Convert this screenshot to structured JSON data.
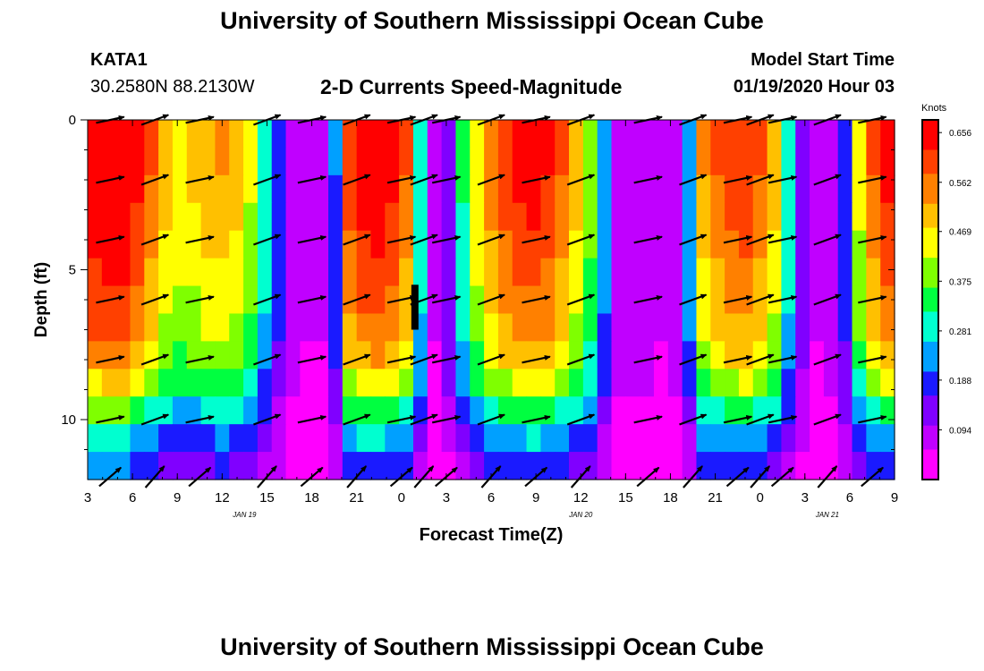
{
  "header": {
    "title": "University of Southern Mississippi Ocean Cube",
    "station_id": "KATA1",
    "station_coords": "30.2580N 88.2130W",
    "subtitle": "2-D Currents Speed-Magnitude",
    "model_start_label": "Model Start Time",
    "model_start_value": "01/19/2020 Hour 03"
  },
  "footer": {
    "title": "University of Southern Mississippi Ocean Cube"
  },
  "chart_data": {
    "type": "heatmap",
    "title": "2-D Currents Speed-Magnitude",
    "xlabel": "Forecast Time(Z)",
    "ylabel": "Depth (ft)",
    "xlim": [
      0,
      54
    ],
    "ylim": [
      0,
      12
    ],
    "x_ticks": [
      {
        "x": 0,
        "label": "3"
      },
      {
        "x": 3,
        "label": "6"
      },
      {
        "x": 6,
        "label": "9"
      },
      {
        "x": 9,
        "label": "12"
      },
      {
        "x": 12,
        "label": "15"
      },
      {
        "x": 15,
        "label": "18"
      },
      {
        "x": 18,
        "label": "21"
      },
      {
        "x": 21,
        "label": "0"
      },
      {
        "x": 24,
        "label": "3"
      },
      {
        "x": 27,
        "label": "6"
      },
      {
        "x": 30,
        "label": "9"
      },
      {
        "x": 33,
        "label": "12"
      },
      {
        "x": 36,
        "label": "15"
      },
      {
        "x": 39,
        "label": "18"
      },
      {
        "x": 42,
        "label": "21"
      },
      {
        "x": 45,
        "label": "0"
      },
      {
        "x": 48,
        "label": "3"
      },
      {
        "x": 51,
        "label": "6"
      },
      {
        "x": 54,
        "label": "9"
      }
    ],
    "date_labels": [
      {
        "x": 10.5,
        "label": "JAN 19"
      },
      {
        "x": 33,
        "label": "JAN 20"
      },
      {
        "x": 49.5,
        "label": "JAN 21"
      }
    ],
    "y_ticks": [
      {
        "y": 0,
        "label": "0"
      },
      {
        "y": 5,
        "label": "5"
      },
      {
        "y": 10,
        "label": "10"
      }
    ],
    "depth_rows": [
      0,
      1,
      2,
      3,
      4,
      5,
      6,
      7,
      8,
      9,
      10,
      11,
      12
    ],
    "row_factor": [
      1.12,
      1.12,
      1.1,
      1.07,
      1.04,
      1.0,
      0.97,
      0.93,
      0.87,
      0.75,
      0.6,
      0.45,
      0.34
    ],
    "surface_speed_series": [
      0.62,
      0.64,
      0.63,
      0.58,
      0.52,
      0.44,
      0.42,
      0.43,
      0.46,
      0.47,
      0.44,
      0.39,
      0.27,
      0.17,
      0.07,
      0.06,
      0.06,
      0.19,
      0.55,
      0.6,
      0.61,
      0.58,
      0.52,
      0.28,
      0.06,
      0.14,
      0.29,
      0.42,
      0.5,
      0.55,
      0.58,
      0.59,
      0.57,
      0.52,
      0.44,
      0.36,
      0.22,
      0.08,
      0.07,
      0.07,
      0.06,
      0.08,
      0.23,
      0.47,
      0.52,
      0.55,
      0.56,
      0.52,
      0.44,
      0.27,
      0.13,
      0.06,
      0.08,
      0.18,
      0.4,
      0.52,
      0.58
    ],
    "arrow_times": [
      1.5,
      4.5,
      7.5,
      12,
      15,
      18,
      21,
      22.5,
      24,
      27,
      30,
      33,
      37.5,
      40.5,
      43.5,
      45,
      46.5,
      49.5,
      52.5
    ],
    "arrow_depths": [
      0,
      2,
      4,
      6,
      8,
      10,
      12
    ],
    "legend": {
      "title": "Knots",
      "min": 0,
      "max": 0.68,
      "ticks": [
        "0.656",
        "0.562",
        "0.469",
        "0.375",
        "0.281",
        "0.188",
        "0.094"
      ],
      "colors": [
        "#ff00ff",
        "#c000ff",
        "#8000ff",
        "#1a1aff",
        "#00a0ff",
        "#00ffd0",
        "#00ff40",
        "#7fff00",
        "#ffff00",
        "#ffc000",
        "#ff8000",
        "#ff4000",
        "#ff0000"
      ]
    }
  }
}
